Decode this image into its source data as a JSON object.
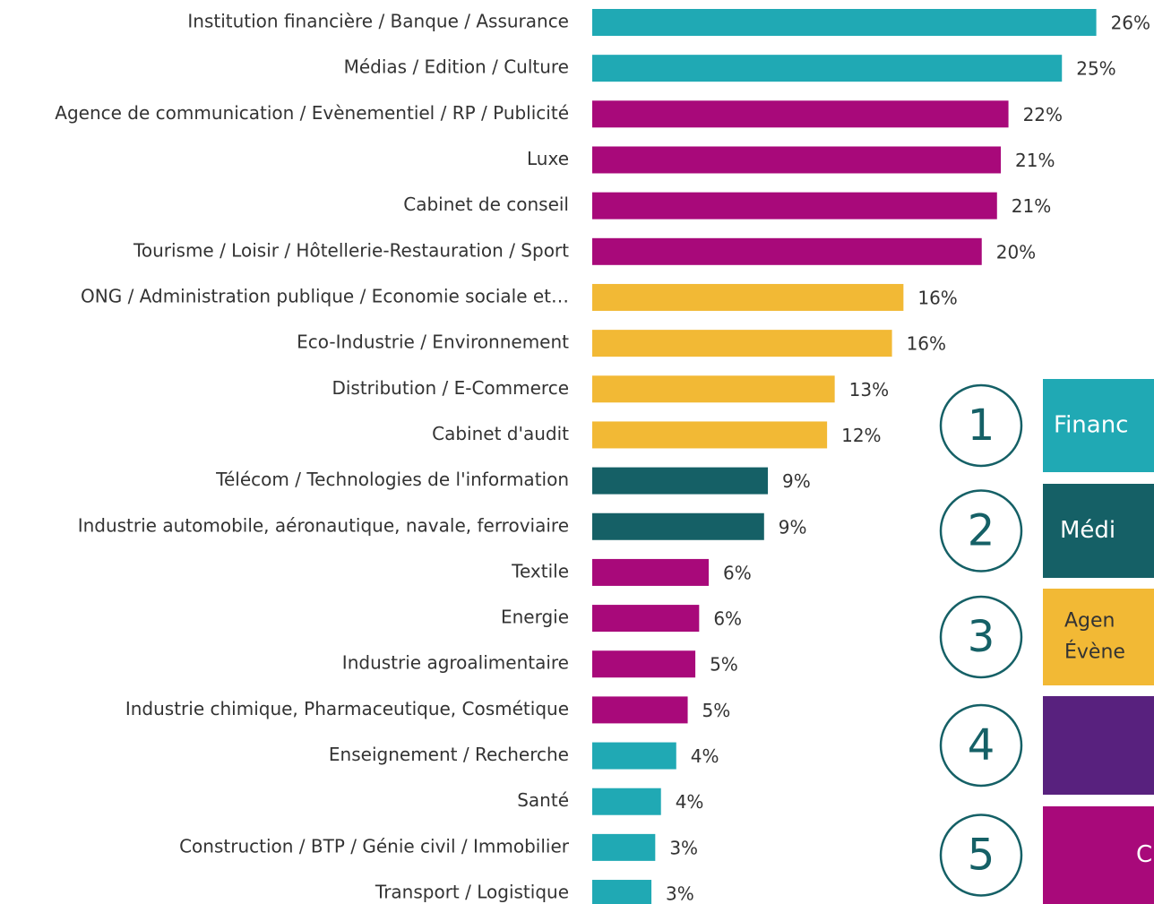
{
  "chart_data": {
    "type": "hbar",
    "categories": [
      "Institution financière / Banque / Assurance",
      "Médias / Edition / Culture",
      "Agence de communication / Evènementiel / RP / Publicité",
      "Luxe",
      "Cabinet de conseil",
      "Tourisme / Loisir / Hôtellerie-Restauration / Sport",
      "ONG / Administration publique / Economie sociale et…",
      "Eco-Industrie / Environnement",
      "Distribution / E-Commerce",
      "Cabinet d'audit",
      "Télécom / Technologies de l'information",
      "Industrie automobile, aéronautique, navale, ferroviaire",
      "Textile",
      "Energie",
      "Industrie agroalimentaire",
      "Industrie chimique, Pharmaceutique, Cosmétique",
      "Enseignement / Recherche",
      "Santé",
      "Construction / BTP / Génie civil / Immobilier",
      "Transport / Logistique"
    ],
    "values": [
      26.4,
      24.6,
      21.8,
      21.4,
      21.2,
      20.4,
      16.3,
      15.7,
      12.7,
      12.3,
      9.2,
      9.0,
      6.1,
      5.6,
      5.4,
      5.0,
      4.4,
      3.6,
      3.3,
      3.1
    ],
    "value_labels": [
      "26%",
      "25%",
      "22%",
      "21%",
      "21%",
      "20%",
      "16%",
      "16%",
      "13%",
      "12%",
      "9%",
      "9%",
      "6%",
      "6%",
      "5%",
      "5%",
      "4%",
      "4%",
      "3%",
      "3%"
    ],
    "colors": [
      "#20a9b4",
      "#20a9b4",
      "#a8097a",
      "#a8097a",
      "#a8097a",
      "#a8097a",
      "#f2b935",
      "#f2b935",
      "#f2b935",
      "#f2b935",
      "#156066",
      "#156066",
      "#a8097a",
      "#a8097a",
      "#a8097a",
      "#a8097a",
      "#20a9b4",
      "#20a9b4",
      "#20a9b4",
      "#20a9b4"
    ],
    "xlim": [
      0,
      29
    ]
  },
  "panel": {
    "items": [
      {
        "number": "1",
        "lines": [
          "Financ"
        ],
        "color": "#20a9b4",
        "text_color": "#ffffff"
      },
      {
        "number": "2",
        "lines": [
          "Médi"
        ],
        "color": "#156066",
        "text_color": "#ffffff"
      },
      {
        "number": "3",
        "lines": [
          "Agen",
          "Évène"
        ],
        "color": "#f2b935",
        "text_color": "#333333"
      },
      {
        "number": "4",
        "lines": [],
        "color": "#58217e",
        "text_color": "#ffffff"
      },
      {
        "number": "5",
        "lines": [
          "C"
        ],
        "color": "#a8097a",
        "text_color": "#ffffff"
      }
    ]
  }
}
